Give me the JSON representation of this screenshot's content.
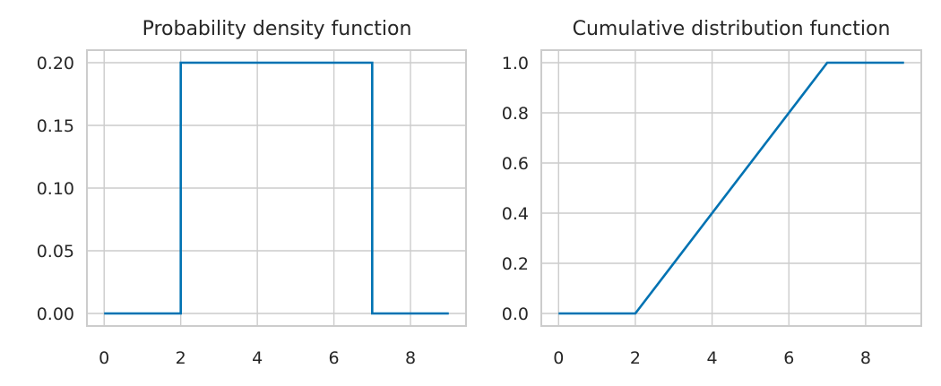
{
  "chart_data": [
    {
      "type": "line",
      "title": "Probability density function",
      "xlabel": "",
      "ylabel": "",
      "xlim": [
        -0.45,
        9.45
      ],
      "ylim": [
        -0.01,
        0.21
      ],
      "xticks": [
        0,
        2,
        4,
        6,
        8
      ],
      "xtick_labels": [
        "0",
        "2",
        "4",
        "6",
        "8"
      ],
      "yticks": [
        0.0,
        0.05,
        0.1,
        0.15,
        0.2
      ],
      "ytick_labels": [
        "0.00",
        "0.05",
        "0.10",
        "0.15",
        "0.20"
      ],
      "grid": true,
      "color": "#0072b2",
      "x": [
        0,
        2,
        2,
        7,
        7,
        9
      ],
      "y": [
        0,
        0,
        0.2,
        0.2,
        0,
        0
      ]
    },
    {
      "type": "line",
      "title": "Cumulative distribution function",
      "xlabel": "",
      "ylabel": "",
      "xlim": [
        -0.45,
        9.45
      ],
      "ylim": [
        -0.05,
        1.05
      ],
      "xticks": [
        0,
        2,
        4,
        6,
        8
      ],
      "xtick_labels": [
        "0",
        "2",
        "4",
        "6",
        "8"
      ],
      "yticks": [
        0.0,
        0.2,
        0.4,
        0.6,
        0.8,
        1.0
      ],
      "ytick_labels": [
        "0.0",
        "0.2",
        "0.4",
        "0.6",
        "0.8",
        "1.0"
      ],
      "grid": true,
      "color": "#0072b2",
      "x": [
        0,
        2,
        7,
        9
      ],
      "y": [
        0,
        0,
        1,
        1
      ]
    }
  ]
}
